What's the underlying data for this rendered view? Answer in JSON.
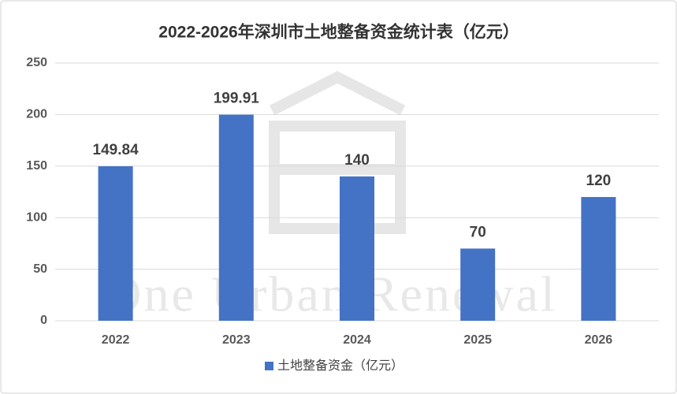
{
  "chart_data": {
    "type": "bar",
    "title": "2022-2026年深圳市土地整备资金统计表（亿元）",
    "watermark": "One Urban Renewal",
    "categories": [
      "2022",
      "2023",
      "2024",
      "2025",
      "2026"
    ],
    "series": [
      {
        "name": "土地整备资金（亿元）",
        "color": "#4472c4",
        "values": [
          149.84,
          199.91,
          140,
          70,
          120
        ]
      }
    ],
    "ylim": [
      0,
      250
    ],
    "yticks": [
      0,
      50,
      100,
      150,
      200,
      250
    ],
    "grid": true,
    "legend": "bottom"
  }
}
